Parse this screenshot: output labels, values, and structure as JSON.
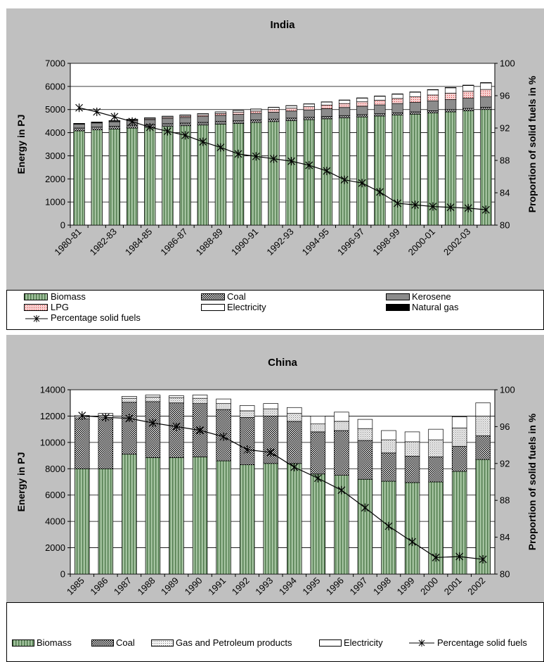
{
  "chart_data": [
    {
      "type": "bar",
      "stacked": true,
      "title": "India",
      "ylabel": "Energy in PJ",
      "y2label": "Proportion of solid fuels in %",
      "ylim": [
        0,
        7000
      ],
      "yticks": [
        0,
        1000,
        2000,
        3000,
        4000,
        5000,
        6000,
        7000
      ],
      "y2lim": [
        80,
        100
      ],
      "y2ticks": [
        80,
        84,
        88,
        92,
        96,
        100
      ],
      "categories": [
        "1980-81",
        "1981-82",
        "1982-83",
        "1983-84",
        "1984-85",
        "1985-86",
        "1986-87",
        "1987-88",
        "1988-89",
        "1989-90",
        "1990-91",
        "1991-92",
        "1992-93",
        "1993-94",
        "1994-95",
        "1995-96",
        "1996-97",
        "1997-98",
        "1998-99",
        "1999-00",
        "2000-01",
        "2001-02",
        "2002-03",
        "2003-04"
      ],
      "xtick_labels": [
        "1980-81",
        "",
        "1982-83",
        "",
        "1984-85",
        "",
        "1986-87",
        "",
        "1988-89",
        "",
        "1990-91",
        "",
        "1992-93",
        "",
        "1994-95",
        "",
        "1996-97",
        "",
        "1998-99",
        "",
        "2000-01",
        "",
        "2002-03",
        ""
      ],
      "series": [
        {
          "name": "Biomass",
          "values": [
            4080,
            4120,
            4160,
            4200,
            4230,
            4270,
            4300,
            4330,
            4370,
            4400,
            4440,
            4480,
            4520,
            4560,
            4600,
            4640,
            4680,
            4720,
            4760,
            4800,
            4850,
            4900,
            4950,
            5000
          ]
        },
        {
          "name": "Coal",
          "values": [
            120,
            120,
            120,
            120,
            120,
            120,
            115,
            115,
            115,
            115,
            110,
            110,
            110,
            105,
            105,
            100,
            100,
            100,
            100,
            100,
            100,
            100,
            100,
            100
          ]
        },
        {
          "name": "Kerosene",
          "values": [
            170,
            180,
            190,
            200,
            215,
            230,
            245,
            255,
            265,
            275,
            285,
            295,
            305,
            320,
            335,
            350,
            365,
            380,
            400,
            410,
            420,
            430,
            440,
            450
          ]
        },
        {
          "name": "LPG",
          "values": [
            10,
            15,
            20,
            25,
            35,
            45,
            55,
            65,
            80,
            90,
            100,
            115,
            125,
            140,
            155,
            170,
            190,
            205,
            220,
            240,
            260,
            280,
            300,
            320
          ]
        },
        {
          "name": "Electricity",
          "values": [
            20,
            25,
            30,
            35,
            40,
            45,
            50,
            55,
            65,
            75,
            85,
            95,
            105,
            115,
            130,
            145,
            160,
            170,
            185,
            200,
            220,
            230,
            250,
            280
          ]
        },
        {
          "name": "Natural gas",
          "values": [
            2,
            2,
            3,
            3,
            3,
            4,
            4,
            5,
            5,
            6,
            6,
            7,
            8,
            8,
            9,
            10,
            11,
            12,
            13,
            14,
            15,
            16,
            17,
            18
          ]
        }
      ],
      "line": {
        "name": "Percentage solid fuels",
        "axis": "secondary",
        "values": [
          94.5,
          94.0,
          93.4,
          92.8,
          92.1,
          91.6,
          91.1,
          90.3,
          89.6,
          88.8,
          88.5,
          88.2,
          87.9,
          87.4,
          86.7,
          85.6,
          85.2,
          84.1,
          82.7,
          82.5,
          82.3,
          82.2,
          82.1,
          81.9
        ]
      },
      "legend": {
        "placement": "bottom"
      }
    },
    {
      "type": "bar",
      "stacked": true,
      "title": "China",
      "ylabel": "Energy in PJ",
      "y2label": "Proportion of solid fuels in %",
      "ylim": [
        0,
        14000
      ],
      "yticks": [
        0,
        2000,
        4000,
        6000,
        8000,
        10000,
        12000,
        14000
      ],
      "y2lim": [
        80,
        100
      ],
      "y2ticks": [
        80,
        84,
        88,
        92,
        96,
        100
      ],
      "categories": [
        "1985",
        "1986",
        "1987",
        "1988",
        "1989",
        "1990",
        "1991",
        "1992",
        "1993",
        "1994",
        "1995",
        "1996",
        "1997",
        "1998",
        "1999",
        "2000",
        "2001",
        "2002"
      ],
      "xtick_labels": [
        "1985",
        "1986",
        "1987",
        "1988",
        "1989",
        "1990",
        "1991",
        "1992",
        "1993",
        "1994",
        "1995",
        "1996",
        "1997",
        "1998",
        "1999",
        "2000",
        "2001",
        "2002"
      ],
      "series": [
        {
          "name": "Biomass",
          "values": [
            8000,
            8000,
            9100,
            8850,
            8850,
            8900,
            8600,
            8300,
            8400,
            8400,
            7600,
            7500,
            7200,
            7050,
            6950,
            7000,
            7800,
            8700
          ]
        },
        {
          "name": "Coal",
          "values": [
            3800,
            3800,
            3950,
            4250,
            4150,
            4050,
            3900,
            3600,
            3600,
            3200,
            3200,
            3400,
            2950,
            2150,
            2000,
            1900,
            1900,
            1800
          ]
        },
        {
          "name": "Gas and Petroleum products",
          "values": [
            150,
            250,
            300,
            350,
            400,
            400,
            450,
            500,
            550,
            600,
            600,
            700,
            900,
            1000,
            1100,
            1300,
            1400,
            1500
          ]
        },
        {
          "name": "Electricity",
          "values": [
            100,
            150,
            150,
            150,
            150,
            250,
            350,
            400,
            400,
            450,
            600,
            700,
            700,
            700,
            750,
            800,
            850,
            1000
          ]
        }
      ],
      "line": {
        "name": "Percentage solid fuels",
        "axis": "secondary",
        "values": [
          97.2,
          97.0,
          96.9,
          96.4,
          96.0,
          95.6,
          94.9,
          93.5,
          93.2,
          91.6,
          90.4,
          89.1,
          87.2,
          85.2,
          83.5,
          81.8,
          81.9,
          81.6
        ]
      },
      "legend": {
        "placement": "bottom"
      }
    }
  ],
  "legend1": {
    "biomass": "Biomass",
    "coal": "Coal",
    "kerosene": "Kerosene",
    "lpg": "LPG",
    "electricity": "Electricity",
    "natural_gas": "Natural gas",
    "pct": "Percentage solid fuels"
  },
  "legend2": {
    "biomass": "Biomass",
    "coal": "Coal",
    "gas": "Gas and Petroleum products",
    "electricity": "Electricity",
    "pct": "Percentage solid fuels"
  },
  "colors": {
    "panel_bg": "#c0c0c0",
    "biomass": "#8fb08c",
    "coal": "#ffffff",
    "kerosene": "#8c8c8c",
    "lpg": "#f5c8c8",
    "electricity": "#ffffff",
    "natural_gas": "#000000",
    "gas_petroleum": "#e6e6e6"
  }
}
